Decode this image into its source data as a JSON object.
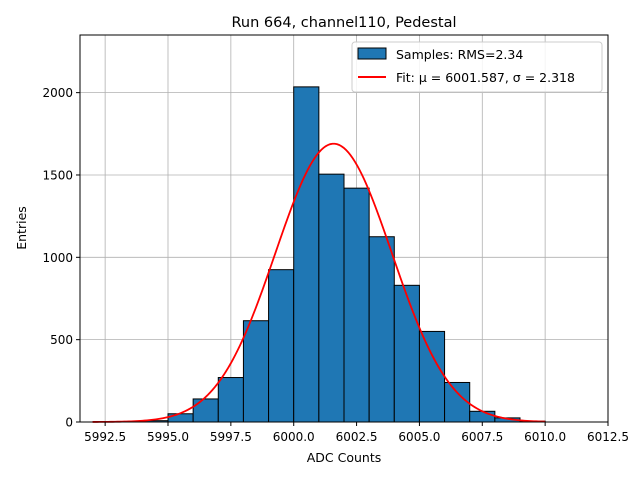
{
  "chart_data": {
    "type": "bar",
    "title": "Run 664, channel110, Pedestal",
    "xlabel": "ADC Counts",
    "ylabel": "Entries",
    "xlim": [
      5991.5,
      6012.5
    ],
    "ylim": [
      0,
      2350
    ],
    "xticks": [
      5992.5,
      5995.0,
      5997.5,
      6000.0,
      6002.5,
      6005.0,
      6007.5,
      6010.0,
      6012.5
    ],
    "xtick_labels": [
      "5992.5",
      "5995.0",
      "5997.5",
      "6000.0",
      "6002.5",
      "6005.0",
      "6007.5",
      "6010.0",
      "6012.5"
    ],
    "yticks": [
      0,
      500,
      1000,
      1500,
      2000
    ],
    "ytick_labels": [
      "0",
      "500",
      "1000",
      "1500",
      "2000"
    ],
    "grid": true,
    "legend_position": "top-right",
    "histogram": {
      "name": "Samples: RMS=2.34",
      "color": "#1f77b4",
      "edge_color": "#000000",
      "bins": [
        {
          "x0": 5993,
          "x1": 5994,
          "count": 1
        },
        {
          "x0": 5994,
          "x1": 5995,
          "count": 8
        },
        {
          "x0": 5995,
          "x1": 5996,
          "count": 50
        },
        {
          "x0": 5996,
          "x1": 5997,
          "count": 140
        },
        {
          "x0": 5997,
          "x1": 5998,
          "count": 270
        },
        {
          "x0": 5998,
          "x1": 5999,
          "count": 615
        },
        {
          "x0": 5999,
          "x1": 6000,
          "count": 925
        },
        {
          "x0": 6000,
          "x1": 6001,
          "count": 2035
        },
        {
          "x0": 6001,
          "x1": 6002,
          "count": 1505
        },
        {
          "x0": 6002,
          "x1": 6003,
          "count": 1420
        },
        {
          "x0": 6003,
          "x1": 6004,
          "count": 1125
        },
        {
          "x0": 6004,
          "x1": 6005,
          "count": 830
        },
        {
          "x0": 6005,
          "x1": 6006,
          "count": 550
        },
        {
          "x0": 6006,
          "x1": 6007,
          "count": 240
        },
        {
          "x0": 6007,
          "x1": 6008,
          "count": 65
        },
        {
          "x0": 6008,
          "x1": 6009,
          "count": 25
        },
        {
          "x0": 6009,
          "x1": 6010,
          "count": 5
        }
      ]
    },
    "fit": {
      "name": "Fit: μ = 6001.587, σ = 2.318",
      "color": "#ff0000",
      "mu": 6001.587,
      "sigma": 2.318,
      "amplitude": 1690,
      "x_range": [
        5992.0,
        6010.0
      ]
    }
  }
}
